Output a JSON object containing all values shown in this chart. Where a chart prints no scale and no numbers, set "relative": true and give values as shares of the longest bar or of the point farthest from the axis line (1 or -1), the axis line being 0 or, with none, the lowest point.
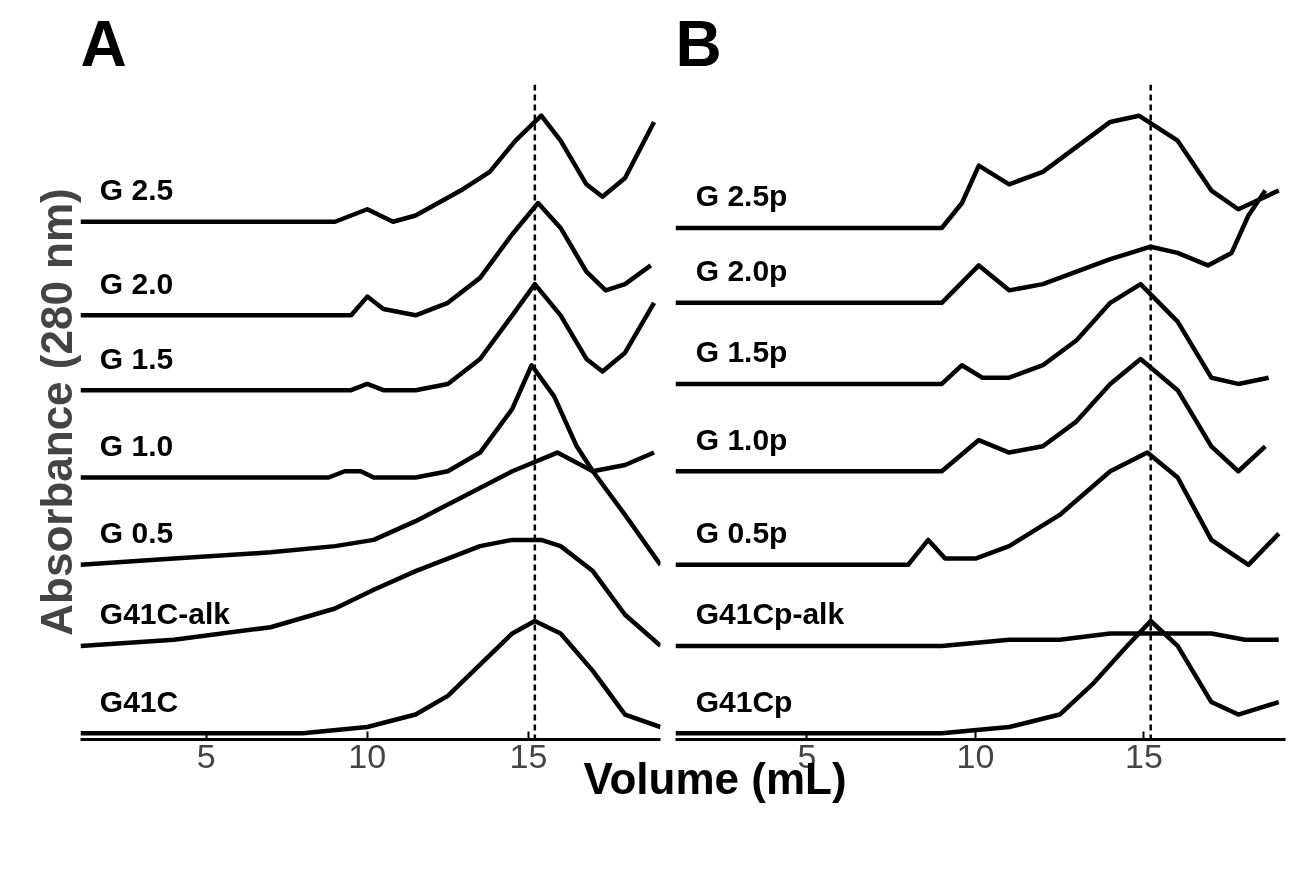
{
  "chart_data": [
    {
      "type": "line",
      "title": "A",
      "ylabel": "Absorbance (280 nm)",
      "xlabel": "Volume (mL)",
      "relative": true,
      "xlim": [
        1.1,
        19.1
      ],
      "xticks": [
        5,
        10,
        15
      ],
      "tick_labels": "x",
      "grid": false,
      "marker": "none",
      "line_style": "solid",
      "ref_lines": [
        {
          "axis": "x",
          "value": 15.2,
          "line_style": "dashed",
          "color": "#000000"
        }
      ],
      "series": [
        {
          "name": "G41C",
          "color": "#000000",
          "x": [
            1.1,
            5,
            8,
            10,
            11.5,
            12.5,
            13.5,
            14.5,
            15.2,
            16,
            17,
            18,
            19.1
          ],
          "values": [
            0.01,
            0.01,
            0.01,
            0.02,
            0.04,
            0.07,
            0.12,
            0.17,
            0.19,
            0.17,
            0.11,
            0.04,
            0.02
          ]
        },
        {
          "name": "G41C-alk",
          "color": "#000000",
          "x": [
            1.1,
            4,
            7,
            9,
            10.2,
            11.5,
            12.5,
            13.5,
            14.5,
            15.4,
            16,
            17,
            18,
            19.1
          ],
          "values": [
            0.15,
            0.16,
            0.18,
            0.21,
            0.24,
            0.27,
            0.29,
            0.31,
            0.32,
            0.32,
            0.31,
            0.27,
            0.2,
            0.15
          ]
        },
        {
          "name": "G 0.5",
          "color": "#000000",
          "x": [
            1.1,
            4,
            7,
            9,
            10.2,
            11.5,
            13,
            14.5,
            15.9,
            17,
            18,
            19.1
          ],
          "values": [
            0.28,
            0.29,
            0.3,
            0.31,
            0.32,
            0.35,
            0.39,
            0.43,
            0.46,
            0.43,
            0.36,
            0.28
          ]
        },
        {
          "name": "G 1.0",
          "color": "#000000",
          "x": [
            1.1,
            5,
            8.8,
            9.3,
            9.8,
            10.2,
            11.5,
            12.5,
            13.5,
            14.5,
            15.1,
            15.8,
            16.5,
            17,
            18,
            18.9
          ],
          "values": [
            0.42,
            0.42,
            0.42,
            0.43,
            0.43,
            0.42,
            0.42,
            0.43,
            0.46,
            0.53,
            0.6,
            0.55,
            0.47,
            0.43,
            0.44,
            0.46
          ]
        },
        {
          "name": "G 1.5",
          "color": "#000000",
          "x": [
            1.1,
            5,
            9.5,
            10,
            10.5,
            11.5,
            12.5,
            13.5,
            14.5,
            15.2,
            16,
            16.8,
            17.3,
            18,
            18.9
          ],
          "values": [
            0.56,
            0.56,
            0.56,
            0.57,
            0.56,
            0.56,
            0.57,
            0.61,
            0.68,
            0.73,
            0.68,
            0.61,
            0.59,
            0.62,
            0.7
          ]
        },
        {
          "name": "G 2.0",
          "color": "#000000",
          "x": [
            1.1,
            5,
            9.5,
            10,
            10.5,
            11.5,
            12.5,
            13.5,
            14.5,
            15.3,
            16,
            16.8,
            17.4,
            18,
            18.8
          ],
          "values": [
            0.68,
            0.68,
            0.68,
            0.71,
            0.69,
            0.68,
            0.7,
            0.74,
            0.81,
            0.86,
            0.82,
            0.75,
            0.72,
            0.73,
            0.76
          ]
        },
        {
          "name": "G 2.5",
          "color": "#000000",
          "x": [
            1.1,
            5,
            9,
            10,
            10.8,
            11.5,
            12.9,
            13.8,
            14.6,
            15.4,
            16,
            16.8,
            17.3,
            18,
            18.9
          ],
          "values": [
            0.83,
            0.83,
            0.83,
            0.85,
            0.83,
            0.84,
            0.88,
            0.91,
            0.96,
            1.0,
            0.96,
            0.89,
            0.87,
            0.9,
            0.99
          ]
        }
      ]
    },
    {
      "type": "line",
      "title": "B",
      "relative": true,
      "xlim": [
        1.1,
        19.2
      ],
      "xticks": [
        5,
        10,
        15
      ],
      "tick_labels": "x",
      "grid": false,
      "marker": "none",
      "line_style": "solid",
      "ref_lines": [
        {
          "axis": "x",
          "value": 15.2,
          "line_style": "dashed",
          "color": "#000000"
        }
      ],
      "series": [
        {
          "name": "G41Cp",
          "color": "#000000",
          "x": [
            1.1,
            5,
            9,
            11,
            12.5,
            13.5,
            14.5,
            15.2,
            16,
            17,
            17.8,
            19
          ],
          "values": [
            0.01,
            0.01,
            0.01,
            0.02,
            0.04,
            0.09,
            0.15,
            0.19,
            0.15,
            0.06,
            0.04,
            0.06
          ]
        },
        {
          "name": "G41Cp-alk",
          "color": "#000000",
          "x": [
            1.1,
            5,
            9,
            11,
            12.5,
            14,
            15,
            16,
            17,
            18,
            19
          ],
          "values": [
            0.15,
            0.15,
            0.15,
            0.16,
            0.16,
            0.17,
            0.17,
            0.17,
            0.17,
            0.16,
            0.16
          ]
        },
        {
          "name": "G 0.5p",
          "color": "#000000",
          "x": [
            1.1,
            5,
            8,
            8.6,
            9.1,
            10,
            11,
            12.5,
            14,
            15.1,
            16,
            17,
            18.1,
            19
          ],
          "values": [
            0.28,
            0.28,
            0.28,
            0.32,
            0.29,
            0.29,
            0.31,
            0.36,
            0.43,
            0.46,
            0.42,
            0.32,
            0.28,
            0.33
          ]
        },
        {
          "name": "G 1.0p",
          "color": "#000000",
          "x": [
            1.1,
            5,
            9,
            10.1,
            11,
            12,
            13,
            14,
            14.9,
            16,
            17,
            17.8,
            18.6
          ],
          "values": [
            0.43,
            0.43,
            0.43,
            0.48,
            0.46,
            0.47,
            0.51,
            0.57,
            0.61,
            0.56,
            0.47,
            0.43,
            0.47
          ]
        },
        {
          "name": "G 1.5p",
          "color": "#000000",
          "x": [
            1.1,
            5,
            9,
            9.6,
            10.2,
            11,
            12,
            13,
            14,
            14.9,
            16,
            17,
            17.8,
            18.7
          ],
          "values": [
            0.57,
            0.57,
            0.57,
            0.6,
            0.58,
            0.58,
            0.6,
            0.64,
            0.7,
            0.73,
            0.67,
            0.58,
            0.57,
            0.58
          ]
        },
        {
          "name": "G 2.0p",
          "color": "#000000",
          "x": [
            1.1,
            5,
            9,
            10.1,
            11,
            12,
            13,
            14,
            15.2,
            16,
            16.9,
            17.6,
            18.1,
            18.6
          ],
          "values": [
            0.7,
            0.7,
            0.7,
            0.76,
            0.72,
            0.73,
            0.75,
            0.77,
            0.79,
            0.78,
            0.76,
            0.78,
            0.84,
            0.88
          ]
        },
        {
          "name": "G 2.5p",
          "color": "#000000",
          "x": [
            1.1,
            5,
            9,
            9.6,
            10.1,
            11,
            12,
            13,
            14,
            14.85,
            16,
            17,
            17.8,
            19
          ],
          "values": [
            0.82,
            0.82,
            0.82,
            0.86,
            0.92,
            0.89,
            0.91,
            0.95,
            0.99,
            1.0,
            0.96,
            0.88,
            0.85,
            0.88
          ]
        }
      ]
    }
  ]
}
